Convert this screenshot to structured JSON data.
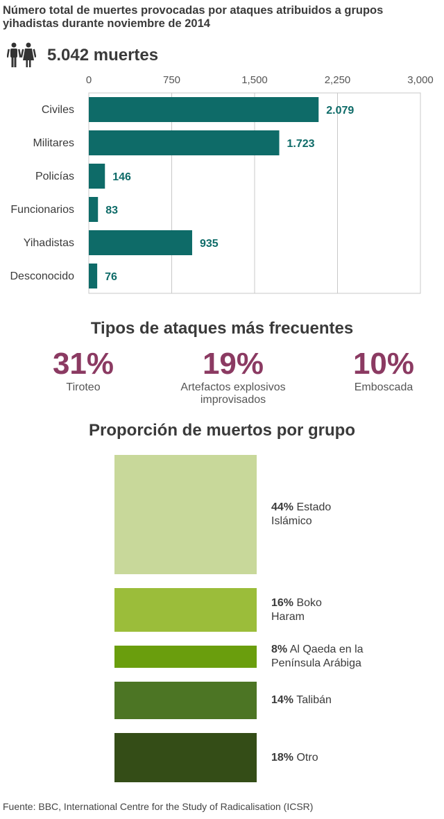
{
  "title": "Número total de muertes provocadas por ataques atribuidos a grupos yihadistas durante noviembre de 2014",
  "total_deaths": "5.042 muertes",
  "chart_data": [
    {
      "type": "bar",
      "orientation": "horizontal",
      "categories": [
        "Civiles",
        "Militares",
        "Policías",
        "Funcionarios",
        "Yihadistas",
        "Desconocido"
      ],
      "values": [
        2079,
        1723,
        146,
        83,
        935,
        76
      ],
      "value_labels": [
        "2.079",
        "1.723",
        "146",
        "83",
        "935",
        "76"
      ],
      "xlim": [
        0,
        3000
      ],
      "xticks": [
        0,
        750,
        1500,
        2250,
        3000
      ],
      "xtick_labels": [
        "0",
        "750",
        "1,500",
        "2,250",
        "3,000"
      ],
      "grid": true,
      "color": "#0e6b68"
    },
    {
      "type": "bar",
      "title": "Proporción de muertos por grupo",
      "categories": [
        "Estado Islámico",
        "Boko Haram",
        "Al Qaeda en la Península Arábiga",
        "Talibán",
        "Otro"
      ],
      "values": [
        44,
        16,
        8,
        14,
        18
      ],
      "series": [
        {
          "pct": "44%",
          "lines": [
            "Estado",
            "Islámico"
          ],
          "color": "#c8d89a",
          "value": 44
        },
        {
          "pct": "16%",
          "lines": [
            "Boko",
            "Haram"
          ],
          "color": "#9bbd3a",
          "value": 16
        },
        {
          "pct": "8%",
          "lines": [
            "Al Qaeda en la",
            "Península Arábiga"
          ],
          "color": "#6a9e0d",
          "value": 8
        },
        {
          "pct": "14%",
          "lines": [
            "Talibán"
          ],
          "color": "#4c7524",
          "value": 14
        },
        {
          "pct": "18%",
          "lines": [
            "Otro"
          ],
          "color": "#344d17",
          "value": 18
        }
      ]
    }
  ],
  "attack_types": {
    "title": "Tipos de ataques más frecuentes",
    "items": [
      {
        "value": "31%",
        "label_lines": [
          "Tiroteo"
        ]
      },
      {
        "value": "19%",
        "label_lines": [
          "Artefactos explosivos",
          "improvisados"
        ]
      },
      {
        "value": "10%",
        "label_lines": [
          "Emboscada"
        ]
      }
    ]
  },
  "source": "Fuente: BBC, International Centre for the Study of Radicalisation (ICSR)",
  "icons": {
    "people": "people-icon"
  }
}
